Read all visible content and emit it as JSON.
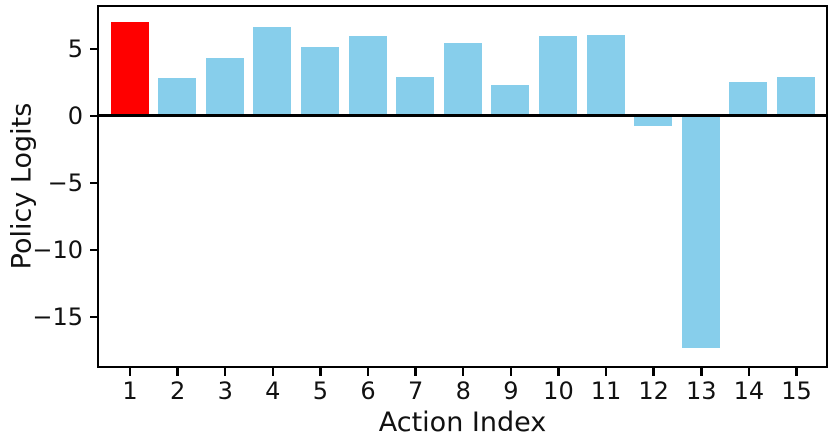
{
  "chart_data": {
    "type": "bar",
    "title": "",
    "xlabel": "Action Index",
    "ylabel": "Policy Logits",
    "categories": [
      "1",
      "2",
      "3",
      "4",
      "5",
      "6",
      "7",
      "8",
      "9",
      "10",
      "11",
      "12",
      "13",
      "14",
      "15"
    ],
    "values": [
      7.0,
      2.8,
      4.3,
      6.6,
      5.1,
      5.9,
      2.9,
      5.4,
      2.3,
      5.9,
      6.0,
      -0.8,
      -17.3,
      2.5,
      2.9
    ],
    "highlighted_bar_index": 0,
    "bar_color": "#87CEEB",
    "highlight_color": "#FF0000",
    "axis_color": "#000000",
    "background_color": "#FFFFFF",
    "yticks": [
      5,
      0,
      -5,
      -10,
      -15
    ],
    "ytick_labels": [
      "5",
      "0",
      "−5",
      "−10",
      "−15"
    ],
    "ylim": [
      -18.6,
      8.1
    ],
    "grid": false,
    "legend_position": "none",
    "zero_line": true
  }
}
